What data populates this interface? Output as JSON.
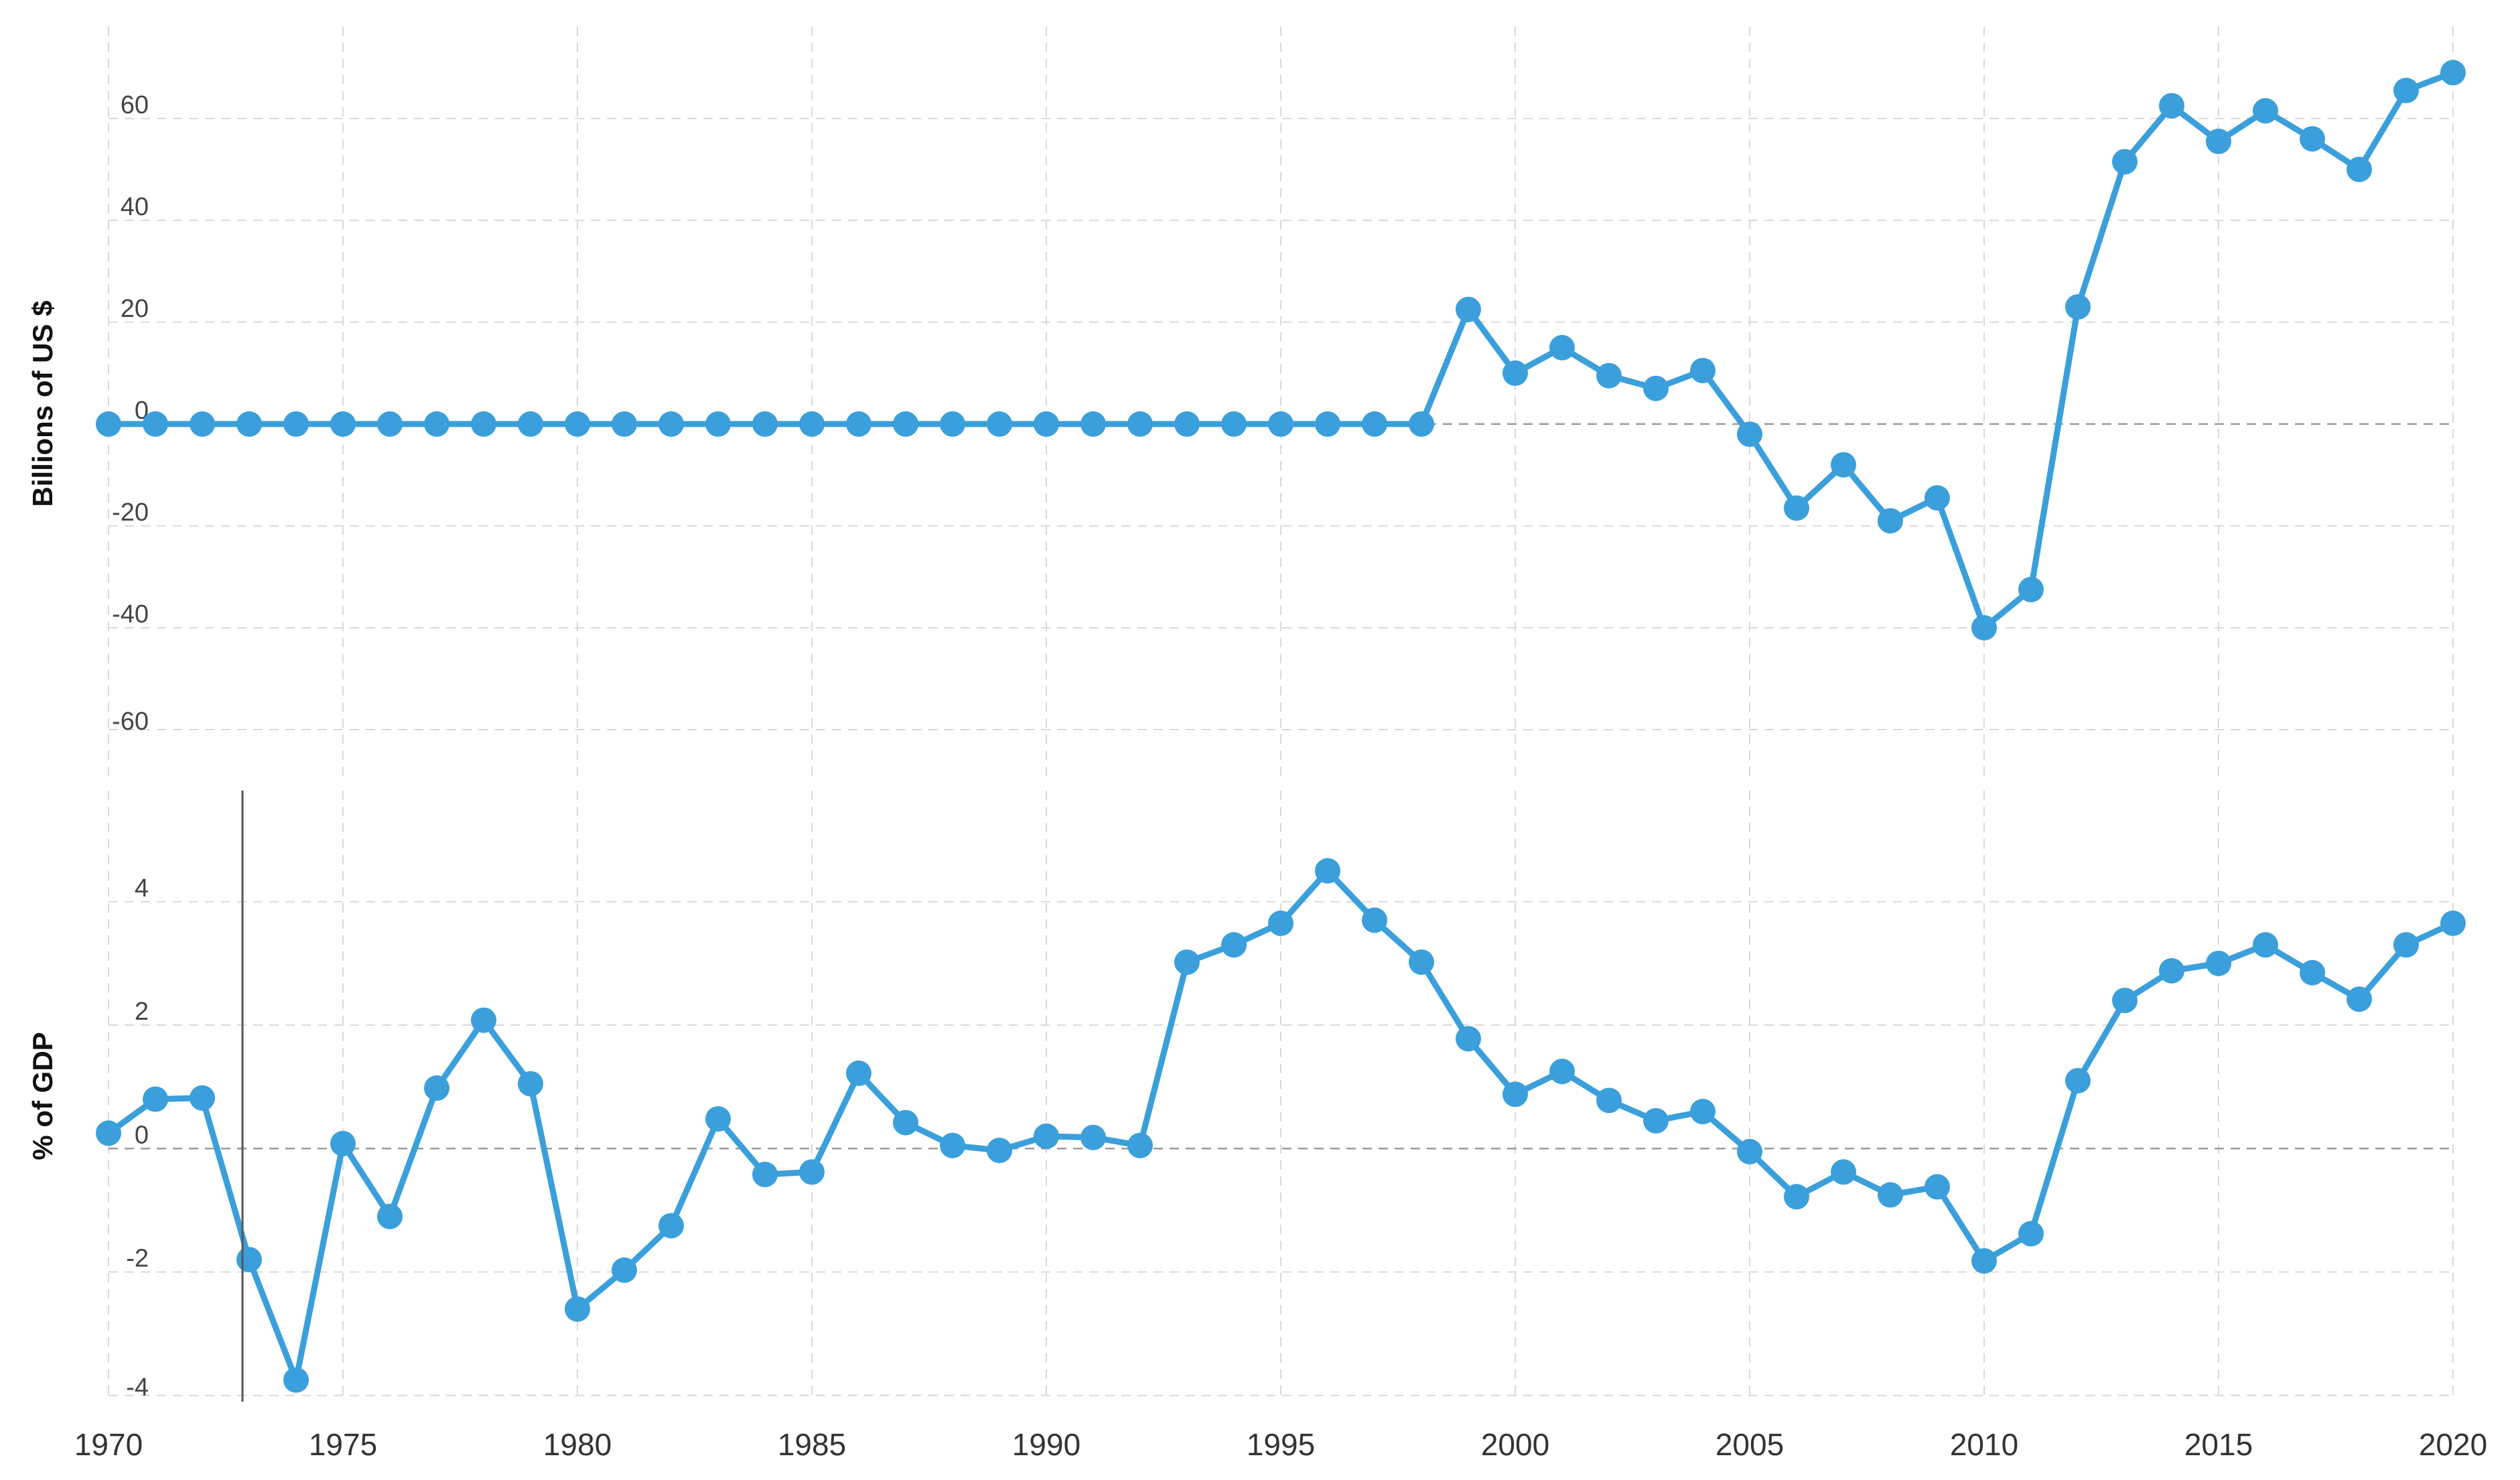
{
  "chart_data": [
    {
      "type": "line",
      "title": "",
      "xlabel": "",
      "ylabel": "Billions of US $",
      "xlim": [
        1970,
        2020
      ],
      "ylim": [
        -70,
        78
      ],
      "yticks": [
        -60,
        -40,
        -20,
        0,
        20,
        40,
        60
      ],
      "grid": true,
      "color": "#3a9fdb",
      "series": [
        {
          "x": [
            1970,
            1971,
            1972,
            1973,
            1974,
            1975,
            1976,
            1977,
            1978,
            1979,
            1980,
            1981,
            1982,
            1983,
            1984,
            1985,
            1986,
            1987,
            1988,
            1989,
            1990,
            1991,
            1992,
            1993,
            1994,
            1995,
            1996,
            1997,
            1998,
            1999,
            2000,
            2001,
            2002,
            2003,
            2004,
            2005,
            2006,
            2007,
            2008,
            2009,
            2010,
            2011,
            2012,
            2013,
            2014,
            2015,
            2016,
            2017,
            2018,
            2019,
            2020
          ],
          "values": [
            0,
            0,
            0,
            0,
            0,
            0,
            0,
            0,
            0,
            0,
            0,
            0,
            0,
            0,
            0,
            0,
            0,
            0,
            0,
            0,
            0,
            0,
            0,
            0,
            0,
            0,
            0,
            0,
            0,
            22.5,
            10,
            15,
            9.5,
            7,
            10.5,
            -2,
            -16.5,
            -8,
            -19,
            -14.5,
            -40,
            -32.5,
            23,
            51.5,
            62.5,
            55.5,
            61.5,
            56,
            50,
            65.5,
            69
          ]
        }
      ]
    },
    {
      "type": "line",
      "title": "",
      "xlabel": "",
      "ylabel": "% of GDP",
      "xlim": [
        1970,
        2020
      ],
      "ylim": [
        -4.1,
        5.8
      ],
      "yticks": [
        -4,
        -2,
        0,
        2,
        4
      ],
      "xticks": [
        1970,
        1975,
        1980,
        1985,
        1990,
        1995,
        2000,
        2005,
        2010,
        2015,
        2020
      ],
      "grid": true,
      "color": "#3a9fdb",
      "series": [
        {
          "x": [
            1970,
            1971,
            1972,
            1973,
            1974,
            1975,
            1976,
            1977,
            1978,
            1979,
            1980,
            1981,
            1982,
            1983,
            1984,
            1985,
            1986,
            1987,
            1988,
            1989,
            1990,
            1991,
            1992,
            1993,
            1994,
            1995,
            1996,
            1997,
            1998,
            1999,
            2000,
            2001,
            2002,
            2003,
            2004,
            2005,
            2006,
            2007,
            2008,
            2009,
            2010,
            2011,
            2012,
            2013,
            2014,
            2015,
            2016,
            2017,
            2018,
            2019,
            2020
          ],
          "values": [
            0.25,
            0.8,
            0.82,
            -1.8,
            -3.75,
            0.08,
            -1.1,
            0.98,
            2.08,
            1.05,
            -2.6,
            -1.97,
            -1.25,
            0.48,
            -0.42,
            -0.38,
            1.22,
            0.42,
            0.05,
            -0.03,
            0.2,
            0.18,
            0.05,
            3.02,
            3.3,
            3.65,
            4.5,
            3.7,
            3.02,
            1.78,
            0.88,
            1.25,
            0.78,
            0.45,
            0.6,
            -0.05,
            -0.78,
            -0.38,
            -0.75,
            -0.62,
            -1.82,
            -1.38,
            1.1,
            2.4,
            2.88,
            3.0,
            3.3,
            2.85,
            2.42,
            3.3,
            3.65
          ]
        }
      ]
    }
  ]
}
